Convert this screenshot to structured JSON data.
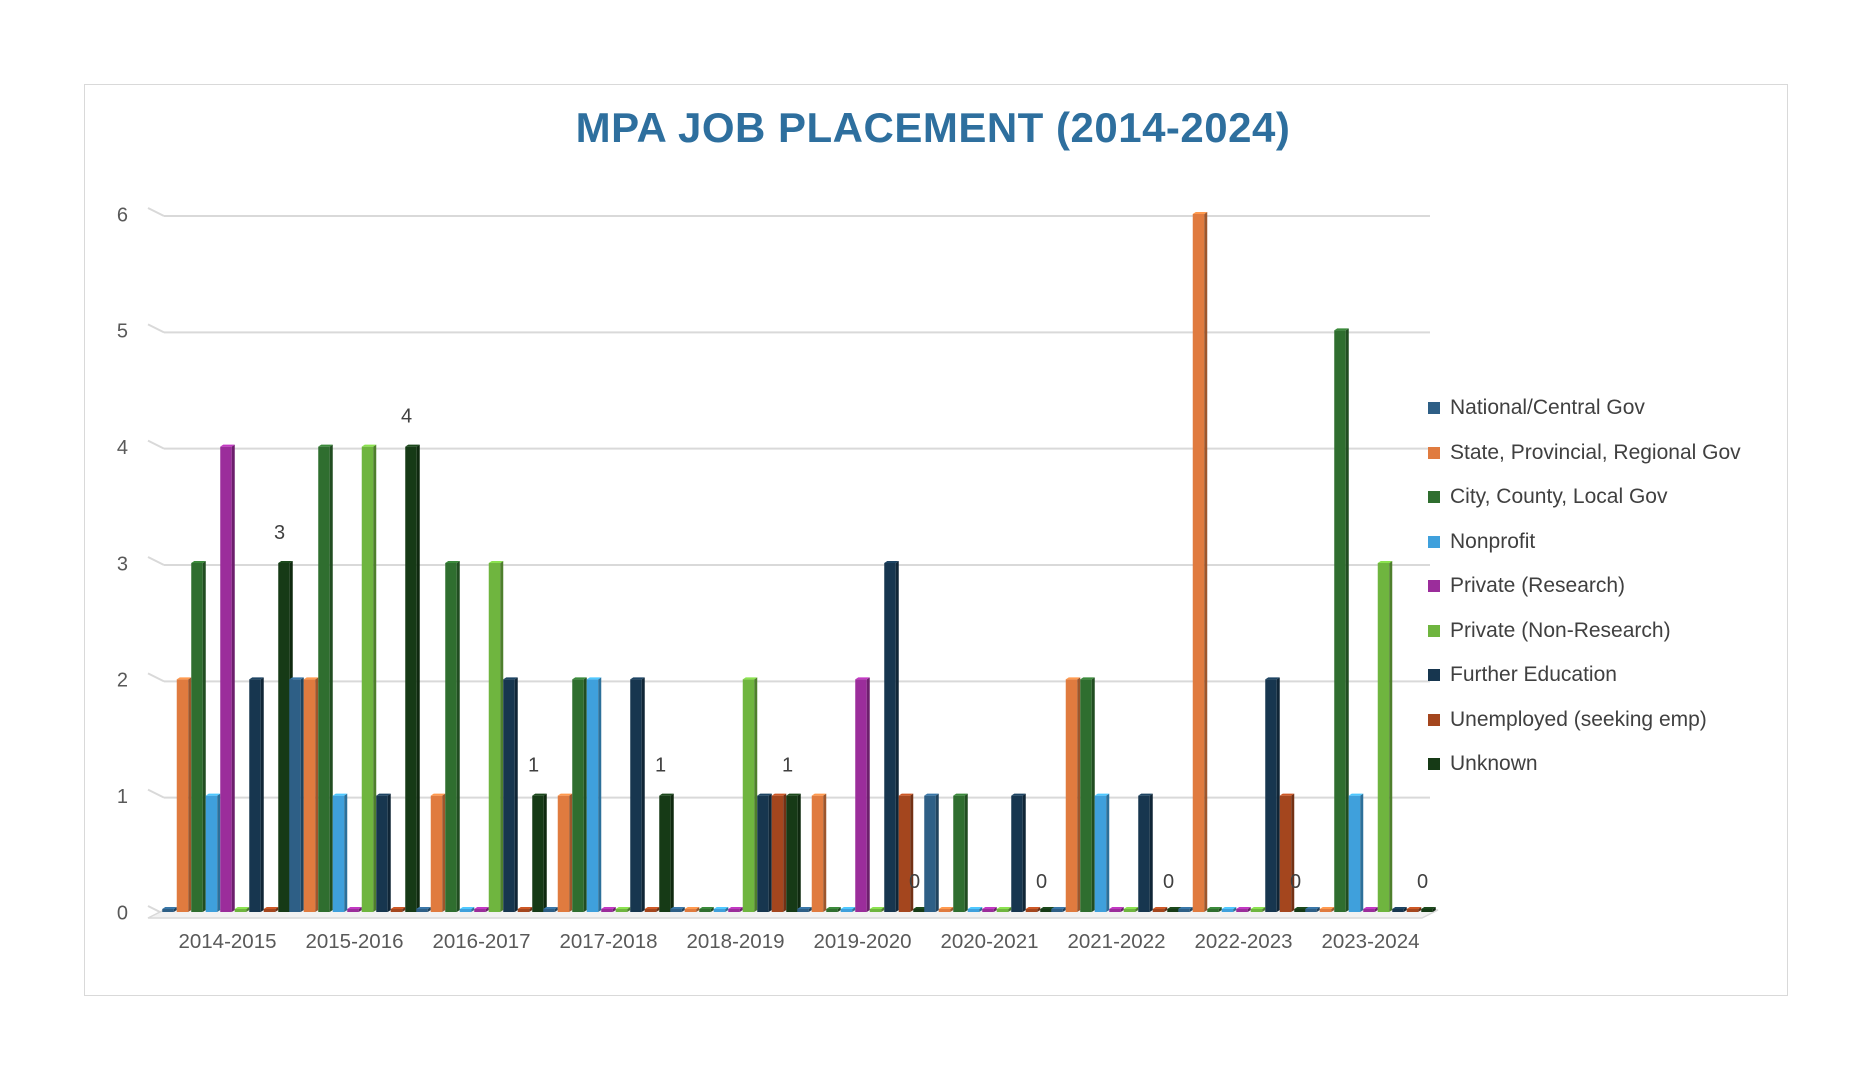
{
  "chart_data": {
    "type": "bar",
    "title": "MPA JOB PLACEMENT (2014-2024)",
    "xlabel": "",
    "ylabel": "",
    "ylim": [
      0,
      6
    ],
    "yticks": [
      "0",
      "1",
      "2",
      "3",
      "4",
      "5",
      "6"
    ],
    "grid": true,
    "legend_position": "right",
    "categories": [
      "2014-2015",
      "2015-2016",
      "2016-2017",
      "2017-2018",
      "2018-2019",
      "2019-2020",
      "2020-2021",
      "2021-2022",
      "2022-2023",
      "2023-2024"
    ],
    "series": [
      {
        "name": "National/Central Gov",
        "color": "#2e5f86",
        "values": [
          0,
          2,
          0,
          0,
          0,
          0,
          1,
          0,
          0,
          0
        ]
      },
      {
        "name": "State, Provincial, Regional Gov",
        "color": "#e07b3f",
        "values": [
          2,
          2,
          1,
          1,
          0,
          1,
          0,
          2,
          6,
          0
        ]
      },
      {
        "name": "City, County, Local Gov",
        "color": "#2f6e2f",
        "values": [
          3,
          4,
          3,
          2,
          0,
          0,
          1,
          2,
          0,
          5
        ]
      },
      {
        "name": "Nonprofit",
        "color": "#3fa0dc",
        "values": [
          1,
          1,
          0,
          2,
          0,
          0,
          0,
          1,
          0,
          1
        ]
      },
      {
        "name": "Private (Research)",
        "color": "#9b2d9b",
        "values": [
          4,
          0,
          0,
          0,
          0,
          2,
          0,
          0,
          0,
          0
        ]
      },
      {
        "name": "Private (Non-Research)",
        "color": "#6fb53f",
        "values": [
          0,
          4,
          3,
          0,
          2,
          0,
          0,
          0,
          0,
          3
        ]
      },
      {
        "name": "Further Education",
        "color": "#17364f",
        "values": [
          2,
          1,
          2,
          2,
          1,
          3,
          1,
          1,
          2,
          0
        ]
      },
      {
        "name": "Unemployed (seeking emp)",
        "color": "#a4461e",
        "values": [
          0,
          0,
          0,
          0,
          1,
          1,
          0,
          0,
          1,
          0
        ]
      },
      {
        "name": "Unknown",
        "color": "#163a16",
        "values": [
          3,
          4,
          1,
          1,
          1,
          0,
          0,
          0,
          0,
          0
        ]
      }
    ],
    "data_labels": {
      "series": "Unknown",
      "values": [
        "3",
        "4",
        "1",
        "1",
        "1",
        "0",
        "0",
        "0",
        "0",
        "0"
      ]
    }
  }
}
